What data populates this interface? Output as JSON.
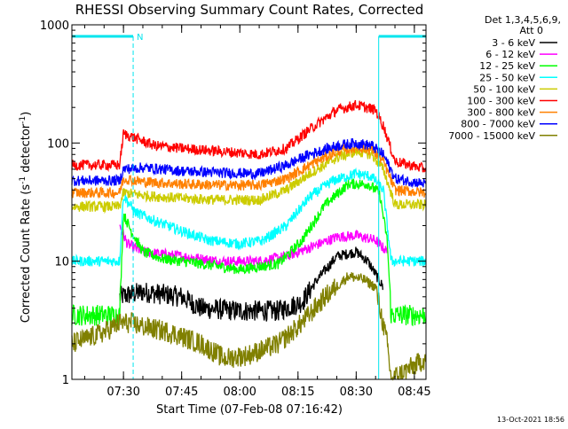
{
  "chart_data": {
    "type": "line",
    "title": "RHESSI Observing Summary Count Rates, Corrected",
    "xlabel": "Start Time (07-Feb-08 07:16:42)",
    "ylabel_main": "Corrected Count Rate (s",
    "ylabel_sup1": "-1",
    "ylabel_mid": " detector",
    "ylabel_sup2": "-1",
    "ylabel_end": ")",
    "yscale": "log",
    "ylim": [
      1,
      1000
    ],
    "xlim_min": [
      16.7,
      108
    ],
    "y_ticks": [
      {
        "value": 1,
        "label": "1"
      },
      {
        "value": 10,
        "label": "10"
      },
      {
        "value": 100,
        "label": "100"
      },
      {
        "value": 1000,
        "label": "1000"
      }
    ],
    "x_ticks": [
      {
        "value": 30,
        "label": "07:30"
      },
      {
        "value": 45,
        "label": "07:45"
      },
      {
        "value": 60,
        "label": "08:00"
      },
      {
        "value": 75,
        "label": "08:15"
      },
      {
        "value": 90,
        "label": "08:30"
      },
      {
        "value": 105,
        "label": "08:45"
      }
    ],
    "legend_header": [
      "Det 1,3,4,5,6,9,",
      "Att 0"
    ],
    "legend_position": "right",
    "night_marker": "N",
    "night_bar_color": "#00e5ee",
    "night_segments": [
      [
        16.7,
        32.5
      ],
      [
        95.8,
        108
      ]
    ],
    "footer": "13-Oct-2021 18:56",
    "series": [
      {
        "name": "3 - 6 keV",
        "color": "#000000",
        "points": [
          [
            16.7,
            null
          ],
          [
            28.5,
            null
          ],
          [
            29,
            5
          ],
          [
            35,
            5.5
          ],
          [
            45,
            5
          ],
          [
            50,
            4
          ],
          [
            60,
            3.8
          ],
          [
            70,
            3.8
          ],
          [
            76,
            4.5
          ],
          [
            80,
            7
          ],
          [
            85,
            11
          ],
          [
            90,
            12
          ],
          [
            93,
            10
          ],
          [
            97,
            6
          ],
          [
            99,
            null
          ]
        ]
      },
      {
        "name": "6 - 12 keV",
        "color": "#ff00ff",
        "points": [
          [
            16.7,
            null
          ],
          [
            28.5,
            null
          ],
          [
            29,
            20
          ],
          [
            31,
            14
          ],
          [
            35,
            12
          ],
          [
            45,
            11
          ],
          [
            55,
            10
          ],
          [
            65,
            10
          ],
          [
            72,
            11
          ],
          [
            78,
            13
          ],
          [
            85,
            16
          ],
          [
            90,
            16.5
          ],
          [
            95,
            15
          ],
          [
            98,
            12
          ],
          [
            99,
            null
          ]
        ]
      },
      {
        "name": "12 - 25 keV",
        "color": "#00ff00",
        "points": [
          [
            16.7,
            3.5
          ],
          [
            29,
            3.5
          ],
          [
            30,
            25
          ],
          [
            32,
            18
          ],
          [
            35,
            12
          ],
          [
            40,
            10.5
          ],
          [
            50,
            9.5
          ],
          [
            60,
            8.5
          ],
          [
            70,
            9.5
          ],
          [
            76,
            15
          ],
          [
            82,
            30
          ],
          [
            88,
            45
          ],
          [
            93,
            45
          ],
          [
            96,
            38
          ],
          [
            98,
            15
          ],
          [
            99,
            3.5
          ],
          [
            108,
            3.5
          ]
        ]
      },
      {
        "name": "25 - 50 keV",
        "color": "#00ffff",
        "points": [
          [
            16.7,
            10
          ],
          [
            29,
            10
          ],
          [
            30,
            36
          ],
          [
            33,
            26
          ],
          [
            38,
            22
          ],
          [
            45,
            18
          ],
          [
            52,
            15
          ],
          [
            60,
            14
          ],
          [
            66,
            15
          ],
          [
            72,
            20
          ],
          [
            78,
            35
          ],
          [
            84,
            48
          ],
          [
            90,
            55
          ],
          [
            94,
            52
          ],
          [
            97,
            40
          ],
          [
            99,
            10
          ],
          [
            108,
            10
          ]
        ]
      },
      {
        "name": "50 - 100 keV",
        "color": "#cccc00",
        "points": [
          [
            16.7,
            29
          ],
          [
            29,
            29
          ],
          [
            30,
            38
          ],
          [
            35,
            36
          ],
          [
            45,
            34
          ],
          [
            55,
            33
          ],
          [
            65,
            33
          ],
          [
            72,
            40
          ],
          [
            78,
            55
          ],
          [
            85,
            75
          ],
          [
            90,
            85
          ],
          [
            94,
            80
          ],
          [
            97,
            60
          ],
          [
            100,
            30
          ],
          [
            108,
            30
          ]
        ]
      },
      {
        "name": "100 - 300 keV",
        "color": "#ff0000",
        "points": [
          [
            16.7,
            65
          ],
          [
            29,
            65
          ],
          [
            30,
            120
          ],
          [
            33,
            110
          ],
          [
            38,
            95
          ],
          [
            45,
            90
          ],
          [
            55,
            85
          ],
          [
            65,
            80
          ],
          [
            72,
            90
          ],
          [
            78,
            130
          ],
          [
            85,
            190
          ],
          [
            90,
            210
          ],
          [
            95,
            190
          ],
          [
            97,
            140
          ],
          [
            100,
            70
          ],
          [
            108,
            60
          ]
        ]
      },
      {
        "name": "300 - 800 keV",
        "color": "#ff8000",
        "points": [
          [
            16.7,
            38
          ],
          [
            29,
            38
          ],
          [
            30,
            50
          ],
          [
            35,
            47
          ],
          [
            45,
            45
          ],
          [
            55,
            44
          ],
          [
            65,
            44
          ],
          [
            72,
            50
          ],
          [
            78,
            65
          ],
          [
            85,
            85
          ],
          [
            90,
            92
          ],
          [
            94,
            88
          ],
          [
            97,
            70
          ],
          [
            100,
            40
          ],
          [
            108,
            38
          ]
        ]
      },
      {
        "name": "800 - 7000 keV",
        "color": "#0000ff",
        "points": [
          [
            16.7,
            48
          ],
          [
            29,
            48
          ],
          [
            30,
            60
          ],
          [
            35,
            62
          ],
          [
            45,
            58
          ],
          [
            55,
            56
          ],
          [
            65,
            55
          ],
          [
            72,
            65
          ],
          [
            78,
            80
          ],
          [
            85,
            95
          ],
          [
            90,
            100
          ],
          [
            94,
            95
          ],
          [
            97,
            80
          ],
          [
            100,
            50
          ],
          [
            108,
            45
          ]
        ]
      },
      {
        "name": "7000 - 15000 keV",
        "color": "#808000",
        "points": [
          [
            16.7,
            2
          ],
          [
            25,
            2.5
          ],
          [
            29,
            3
          ],
          [
            32,
            3
          ],
          [
            35,
            2.8
          ],
          [
            42,
            2.5
          ],
          [
            50,
            2
          ],
          [
            56,
            1.5
          ],
          [
            62,
            1.6
          ],
          [
            70,
            2
          ],
          [
            76,
            3
          ],
          [
            82,
            5
          ],
          [
            88,
            7.5
          ],
          [
            92,
            7
          ],
          [
            95,
            6
          ],
          [
            98,
            2
          ],
          [
            99,
            1
          ],
          [
            108,
            1.5
          ]
        ]
      }
    ]
  }
}
